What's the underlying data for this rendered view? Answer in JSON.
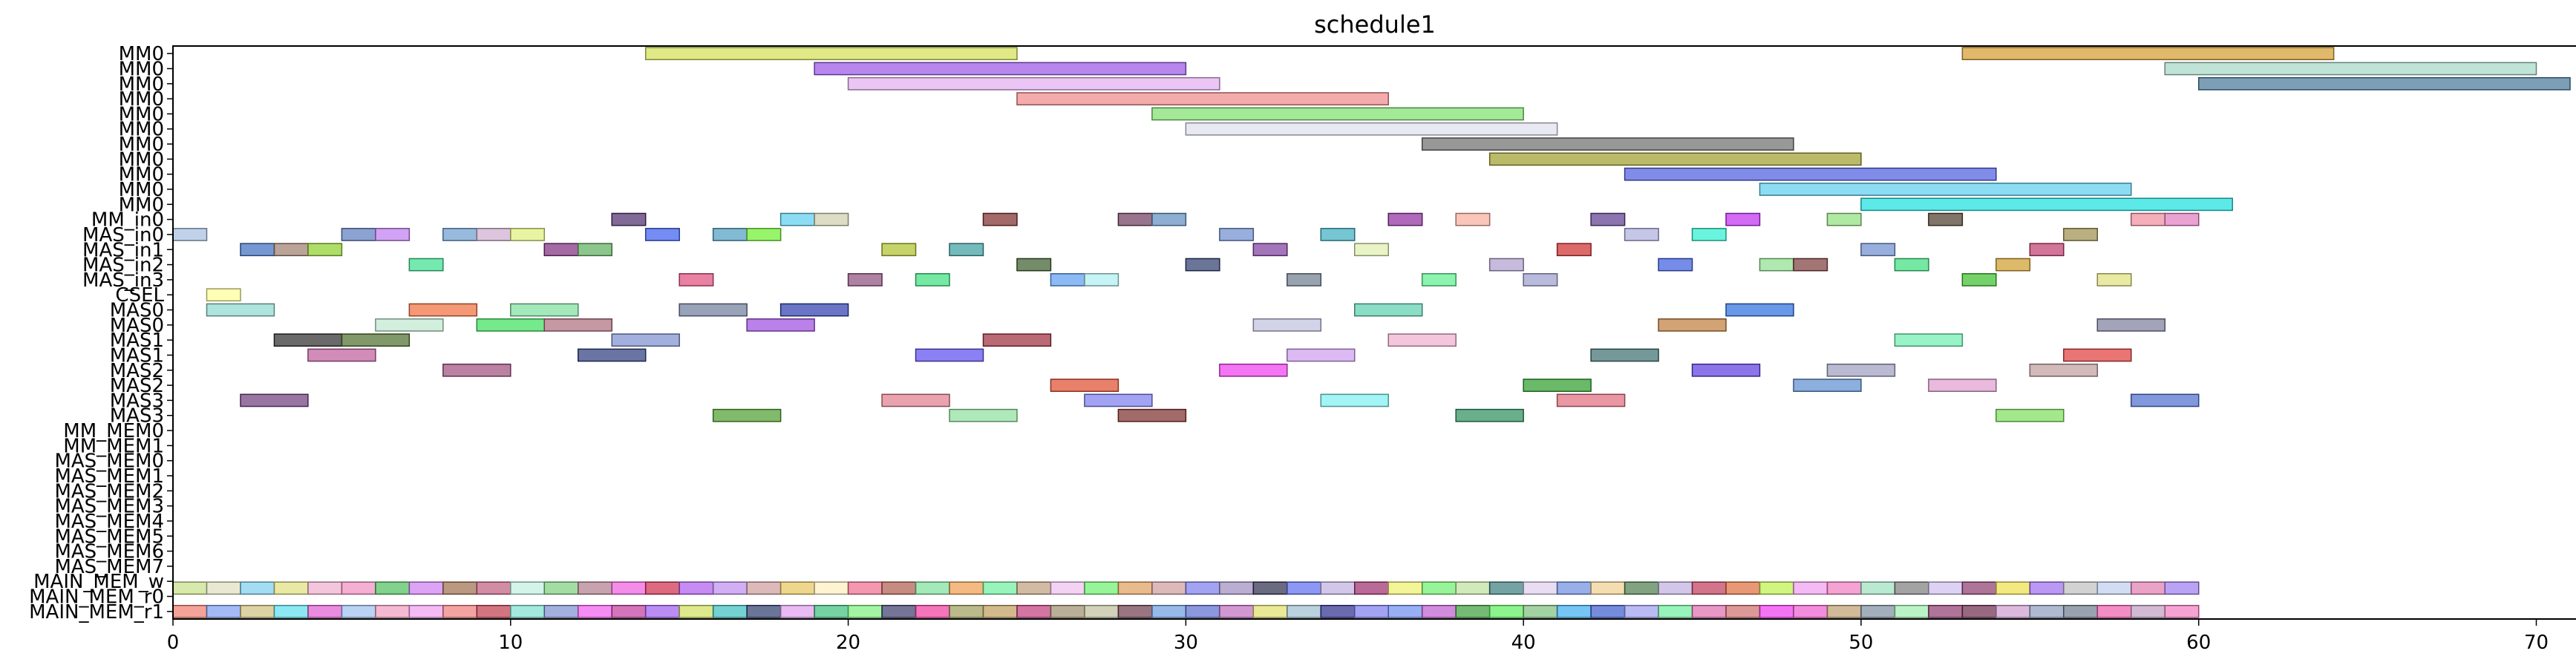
{
  "chart_data": {
    "type": "gantt",
    "title": "schedule1",
    "xlabel": "",
    "ylabel": "",
    "xlim": [
      0,
      71
    ],
    "x_ticks": [
      0,
      10,
      20,
      30,
      40,
      50,
      60,
      70
    ],
    "grid": false,
    "rows": [
      "MM0",
      "MM0",
      "MM0",
      "MM0",
      "MM0",
      "MM0",
      "MM0",
      "MM0",
      "MM0",
      "MM0",
      "MM0",
      "MM_in0",
      "MAS_in0",
      "MAS_in1",
      "MAS_in2",
      "MAS_in3",
      "CSEL",
      "MAS0",
      "MAS0",
      "MAS1",
      "MAS1",
      "MAS2",
      "MAS2",
      "MAS3",
      "MAS3",
      "MM_MEM0",
      "MM_MEM1",
      "MAS_MEM0",
      "MAS_MEM1",
      "MAS_MEM2",
      "MAS_MEM3",
      "MAS_MEM4",
      "MAS_MEM5",
      "MAS_MEM6",
      "MAS_MEM7",
      "MAIN_MEM_w",
      "MAIN_MEM_r0",
      "MAIN_MEM_r1"
    ],
    "palette": [
      "#a6cee3",
      "#f4a582",
      "#b2df8a",
      "#fb9a99",
      "#cab2d6",
      "#ffff99",
      "#1f78b4",
      "#33a02c",
      "#e31a1c",
      "#ff7f00",
      "#6a3d9a",
      "#b15928",
      "#8dd3c7",
      "#bebada",
      "#80b1d3",
      "#fdb462",
      "#fccde5",
      "#bc80bd",
      "#ccebc5",
      "#ffed6f",
      "#66c2a5",
      "#fc8d62",
      "#8da0cb",
      "#e78ac3",
      "#a6d854",
      "#ffd92f",
      "#e5c494",
      "#1b9e77",
      "#d95f02",
      "#7570b3",
      "#e7298a",
      "#66a61e",
      "#e6ab02",
      "#a6761d",
      "#666666",
      "#00bcd4",
      "#ff4081",
      "#7c4dff",
      "#69f0ae",
      "#ffab40"
    ],
    "tasks": [
      {
        "row": 0,
        "start": 14,
        "end": 25,
        "color": "#d4e157"
      },
      {
        "row": 0,
        "start": 53,
        "end": 64,
        "color": "#d4a031"
      },
      {
        "row": 1,
        "start": 19,
        "end": 30,
        "color": "#9b59e6"
      },
      {
        "row": 1,
        "start": 59,
        "end": 70,
        "color": "#a8d8c8"
      },
      {
        "row": 2,
        "start": 20,
        "end": 31,
        "color": "#e3b0f0"
      },
      {
        "row": 2,
        "start": 60,
        "end": 71,
        "color": "#4a7a9b"
      },
      {
        "row": 3,
        "start": 25,
        "end": 36,
        "color": "#f08a8a"
      },
      {
        "row": 4,
        "start": 29,
        "end": 40,
        "color": "#80e070"
      },
      {
        "row": 5,
        "start": 30,
        "end": 41,
        "color": "#e0e0ee"
      },
      {
        "row": 6,
        "start": 37,
        "end": 48,
        "color": "#707070"
      },
      {
        "row": 7,
        "start": 39,
        "end": 50,
        "color": "#a0a030"
      },
      {
        "row": 8,
        "start": 43,
        "end": 54,
        "color": "#5060e0"
      },
      {
        "row": 9,
        "start": 47,
        "end": 58,
        "color": "#60d0f0"
      },
      {
        "row": 10,
        "start": 50,
        "end": 61,
        "color": "#20e0e0"
      },
      {
        "row": 11,
        "start": 13,
        "end": 14,
        "color": "#503070"
      },
      {
        "row": 11,
        "start": 18,
        "end": 19,
        "color": "#60d0f0"
      },
      {
        "row": 11,
        "start": 19,
        "end": 20,
        "color": "#d0d0b0"
      },
      {
        "row": 11,
        "start": 24,
        "end": 25,
        "color": "#803030"
      },
      {
        "row": 11,
        "start": 28,
        "end": 29,
        "color": "#704060"
      },
      {
        "row": 11,
        "start": 29,
        "end": 30,
        "color": "#6090c0"
      },
      {
        "row": 11,
        "start": 36,
        "end": 37,
        "color": "#9030a0"
      },
      {
        "row": 11,
        "start": 38,
        "end": 39,
        "color": "#f8b0a0"
      },
      {
        "row": 11,
        "start": 42,
        "end": 43,
        "color": "#604090"
      },
      {
        "row": 11,
        "start": 46,
        "end": 47,
        "color": "#c030f0"
      },
      {
        "row": 11,
        "start": 49,
        "end": 50,
        "color": "#90e080"
      },
      {
        "row": 11,
        "start": 52,
        "end": 53,
        "color": "#504030"
      },
      {
        "row": 11,
        "start": 58,
        "end": 59,
        "color": "#f090a0"
      },
      {
        "row": 11,
        "start": 59,
        "end": 60,
        "color": "#e080c0"
      },
      {
        "row": 12,
        "start": 0,
        "end": 1,
        "color": "#a6c0e0"
      },
      {
        "row": 12,
        "start": 5,
        "end": 6,
        "color": "#6080c0"
      },
      {
        "row": 12,
        "start": 6,
        "end": 7,
        "color": "#c080f0"
      },
      {
        "row": 12,
        "start": 8,
        "end": 9,
        "color": "#70a0d0"
      },
      {
        "row": 12,
        "start": 9,
        "end": 10,
        "color": "#d0b0d0"
      },
      {
        "row": 12,
        "start": 10,
        "end": 11,
        "color": "#e0f080"
      },
      {
        "row": 12,
        "start": 14,
        "end": 15,
        "color": "#4060f0"
      },
      {
        "row": 12,
        "start": 16,
        "end": 17,
        "color": "#50a0c0"
      },
      {
        "row": 12,
        "start": 17,
        "end": 18,
        "color": "#70f030"
      },
      {
        "row": 12,
        "start": 31,
        "end": 32,
        "color": "#7090d0"
      },
      {
        "row": 12,
        "start": 34,
        "end": 35,
        "color": "#40b0c0"
      },
      {
        "row": 12,
        "start": 43,
        "end": 44,
        "color": "#b0b0e0"
      },
      {
        "row": 12,
        "start": 45,
        "end": 46,
        "color": "#30f0d0"
      },
      {
        "row": 12,
        "start": 56,
        "end": 57,
        "color": "#a09050"
      },
      {
        "row": 13,
        "start": 2,
        "end": 3,
        "color": "#4070c0"
      },
      {
        "row": 13,
        "start": 3,
        "end": 4,
        "color": "#a08070"
      },
      {
        "row": 13,
        "start": 4,
        "end": 5,
        "color": "#90d030"
      },
      {
        "row": 13,
        "start": 11,
        "end": 12,
        "color": "#803080"
      },
      {
        "row": 13,
        "start": 12,
        "end": 13,
        "color": "#60b060"
      },
      {
        "row": 13,
        "start": 21,
        "end": 22,
        "color": "#b0c030"
      },
      {
        "row": 13,
        "start": 23,
        "end": 24,
        "color": "#40a0a0"
      },
      {
        "row": 13,
        "start": 32,
        "end": 33,
        "color": "#8040a0"
      },
      {
        "row": 13,
        "start": 35,
        "end": 36,
        "color": "#e0f0b0"
      },
      {
        "row": 13,
        "start": 41,
        "end": 42,
        "color": "#d03030"
      },
      {
        "row": 13,
        "start": 50,
        "end": 51,
        "color": "#7090d0"
      },
      {
        "row": 13,
        "start": 55,
        "end": 56,
        "color": "#c04070"
      },
      {
        "row": 14,
        "start": 7,
        "end": 8,
        "color": "#40e090"
      },
      {
        "row": 14,
        "start": 25,
        "end": 26,
        "color": "#406030"
      },
      {
        "row": 14,
        "start": 30,
        "end": 31,
        "color": "#304070"
      },
      {
        "row": 14,
        "start": 39,
        "end": 40,
        "color": "#b0a0d0"
      },
      {
        "row": 14,
        "start": 44,
        "end": 45,
        "color": "#4060e0"
      },
      {
        "row": 14,
        "start": 47,
        "end": 48,
        "color": "#90e090"
      },
      {
        "row": 14,
        "start": 48,
        "end": 49,
        "color": "#804040"
      },
      {
        "row": 14,
        "start": 51,
        "end": 52,
        "color": "#40e080"
      },
      {
        "row": 14,
        "start": 54,
        "end": 55,
        "color": "#d0a030"
      },
      {
        "row": 15,
        "start": 15,
        "end": 16,
        "color": "#e05080"
      },
      {
        "row": 15,
        "start": 20,
        "end": 21,
        "color": "#905080"
      },
      {
        "row": 15,
        "start": 22,
        "end": 23,
        "color": "#40e080"
      },
      {
        "row": 15,
        "start": 26,
        "end": 27,
        "color": "#60a0f0"
      },
      {
        "row": 15,
        "start": 27,
        "end": 28,
        "color": "#b0f0f0"
      },
      {
        "row": 15,
        "start": 33,
        "end": 34,
        "color": "#708090"
      },
      {
        "row": 15,
        "start": 37,
        "end": 38,
        "color": "#60f090"
      },
      {
        "row": 15,
        "start": 40,
        "end": 41,
        "color": "#a0a0d0"
      },
      {
        "row": 15,
        "start": 53,
        "end": 54,
        "color": "#40c030"
      },
      {
        "row": 15,
        "start": 57,
        "end": 58,
        "color": "#e0e080"
      },
      {
        "row": 16,
        "start": 1,
        "end": 2,
        "color": "#ffff99"
      },
      {
        "row": 17,
        "start": 1,
        "end": 3,
        "color": "#90d8d0"
      },
      {
        "row": 17,
        "start": 7,
        "end": 9,
        "color": "#f07040"
      },
      {
        "row": 17,
        "start": 10,
        "end": 12,
        "color": "#80e0a0"
      },
      {
        "row": 17,
        "start": 15,
        "end": 17,
        "color": "#7080a0"
      },
      {
        "row": 17,
        "start": 18,
        "end": 20,
        "color": "#3040b0"
      },
      {
        "row": 17,
        "start": 35,
        "end": 37,
        "color": "#60d0b0"
      },
      {
        "row": 17,
        "start": 46,
        "end": 48,
        "color": "#3070e0"
      },
      {
        "row": 18,
        "start": 6,
        "end": 8,
        "color": "#c0e8d0"
      },
      {
        "row": 18,
        "start": 9,
        "end": 11,
        "color": "#40e060"
      },
      {
        "row": 18,
        "start": 11,
        "end": 13,
        "color": "#b07080"
      },
      {
        "row": 18,
        "start": 17,
        "end": 19,
        "color": "#a050e0"
      },
      {
        "row": 18,
        "start": 32,
        "end": 34,
        "color": "#c0c0e0"
      },
      {
        "row": 18,
        "start": 44,
        "end": 46,
        "color": "#c08040"
      },
      {
        "row": 18,
        "start": 57,
        "end": 59,
        "color": "#8080a0"
      },
      {
        "row": 19,
        "start": 3,
        "end": 5,
        "color": "#303030"
      },
      {
        "row": 19,
        "start": 5,
        "end": 7,
        "color": "#507030"
      },
      {
        "row": 19,
        "start": 13,
        "end": 15,
        "color": "#8090d0"
      },
      {
        "row": 19,
        "start": 24,
        "end": 26,
        "color": "#a03040"
      },
      {
        "row": 19,
        "start": 36,
        "end": 38,
        "color": "#f0b0d0"
      },
      {
        "row": 19,
        "start": 51,
        "end": 53,
        "color": "#70f0b0"
      },
      {
        "row": 20,
        "start": 4,
        "end": 6,
        "color": "#c060a0"
      },
      {
        "row": 20,
        "start": 12,
        "end": 14,
        "color": "#304080"
      },
      {
        "row": 20,
        "start": 22,
        "end": 24,
        "color": "#6050f0"
      },
      {
        "row": 20,
        "start": 33,
        "end": 35,
        "color": "#d0a0f0"
      },
      {
        "row": 20,
        "start": 42,
        "end": 44,
        "color": "#407070"
      },
      {
        "row": 20,
        "start": 56,
        "end": 58,
        "color": "#e04040"
      },
      {
        "row": 21,
        "start": 8,
        "end": 10,
        "color": "#a05080"
      },
      {
        "row": 21,
        "start": 31,
        "end": 33,
        "color": "#f040f0"
      },
      {
        "row": 21,
        "start": 45,
        "end": 47,
        "color": "#6040e0"
      },
      {
        "row": 21,
        "start": 49,
        "end": 51,
        "color": "#a0a0c0"
      },
      {
        "row": 21,
        "start": 55,
        "end": 57,
        "color": "#c0a0a0"
      },
      {
        "row": 22,
        "start": 26,
        "end": 28,
        "color": "#e05030"
      },
      {
        "row": 22,
        "start": 40,
        "end": 42,
        "color": "#30a030"
      },
      {
        "row": 22,
        "start": 48,
        "end": 50,
        "color": "#6090d0"
      },
      {
        "row": 22,
        "start": 52,
        "end": 54,
        "color": "#e0a0d0"
      },
      {
        "row": 23,
        "start": 2,
        "end": 4,
        "color": "#704080"
      },
      {
        "row": 23,
        "start": 21,
        "end": 23,
        "color": "#e08090"
      },
      {
        "row": 23,
        "start": 27,
        "end": 29,
        "color": "#8080f0"
      },
      {
        "row": 23,
        "start": 34,
        "end": 36,
        "color": "#80f0f0"
      },
      {
        "row": 23,
        "start": 41,
        "end": 43,
        "color": "#e07080"
      },
      {
        "row": 23,
        "start": 58,
        "end": 60,
        "color": "#5070d0"
      },
      {
        "row": 24,
        "start": 16,
        "end": 18,
        "color": "#50a030"
      },
      {
        "row": 24,
        "start": 23,
        "end": 25,
        "color": "#90e0a0"
      },
      {
        "row": 24,
        "start": 28,
        "end": 30,
        "color": "#803030"
      },
      {
        "row": 24,
        "start": 38,
        "end": 40,
        "color": "#309060"
      },
      {
        "row": 24,
        "start": 54,
        "end": 56,
        "color": "#80e060"
      }
    ],
    "mem_rows": {
      "w_row": 35,
      "r0_row": 36,
      "r1_row": 37,
      "slot_count": 60,
      "w_colors": [
        "#c8e08a",
        "#e0e0c0",
        "#80d0f0",
        "#e0e080",
        "#f0b0d0",
        "#f090c0",
        "#50c060",
        "#d080f0",
        "#a07050",
        "#c06080",
        "#c0f0e0",
        "#80d080",
        "#b08090",
        "#f060e0",
        "#d03050",
        "#b060f0",
        "#c090f0",
        "#d0a0a0",
        "#e8c860",
        "#fff0c0",
        "#f07090",
        "#b06050",
        "#80e0a0",
        "#f0a050",
        "#70f0a0",
        "#c0a080",
        "#f0c0f0",
        "#70f070",
        "#e0a060",
        "#d0a0a0",
        "#8080f0",
        "#a090c0",
        "#303050",
        "#6070f0",
        "#c0b0e0",
        "#a03070",
        "#f0f070",
        "#70f070",
        "#c0e0a0",
        "#408080",
        "#e0d0f0",
        "#7090e0",
        "#f0d090",
        "#508050",
        "#c0b0e0",
        "#c04060",
        "#e07040",
        "#c0f050",
        "#f0a0f0",
        "#f080c0",
        "#a0e0c0",
        "#808080",
        "#d0c0f0",
        "#904070",
        "#f0e050",
        "#a070f0",
        "#c0c0c0",
        "#c0d0f0",
        "#e080b0",
        "#a080f0"
      ],
      "r0_colors": [
        "#ffffff"
      ],
      "r1_colors": [
        "#f08070",
        "#80a0f0",
        "#d0c080",
        "#60e0f0",
        "#e060d0",
        "#a0c0f0",
        "#f0a0c0",
        "#f0a0f0",
        "#f08080",
        "#c04050",
        "#80e0d0",
        "#8090d0",
        "#f060f0",
        "#c040a0",
        "#a060f0",
        "#d0e060",
        "#40c0c0",
        "#304070",
        "#e0a0f0",
        "#40c080",
        "#80f080",
        "#404070",
        "#f040a0",
        "#a0a060",
        "#c0a060",
        "#c04080",
        "#a09070",
        "#c0c0a0",
        "#704050",
        "#70a0e0",
        "#6070d0",
        "#c070c0",
        "#e0e070",
        "#a0c0d0",
        "#303090",
        "#8080f0",
        "#7090f0",
        "#c060d0",
        "#40a040",
        "#60f060",
        "#80c080",
        "#40b0f0",
        "#4060d0",
        "#a0a0f0",
        "#70f0a0",
        "#e070b0",
        "#d07070",
        "#f040f0",
        "#f060d0",
        "#c0a070",
        "#8090a0",
        "#a0f0b0",
        "#904070",
        "#703050",
        "#d0a0d0",
        "#90a0c0",
        "#708090",
        "#f060b0",
        "#c0a0c0",
        "#f080c0"
      ]
    }
  }
}
